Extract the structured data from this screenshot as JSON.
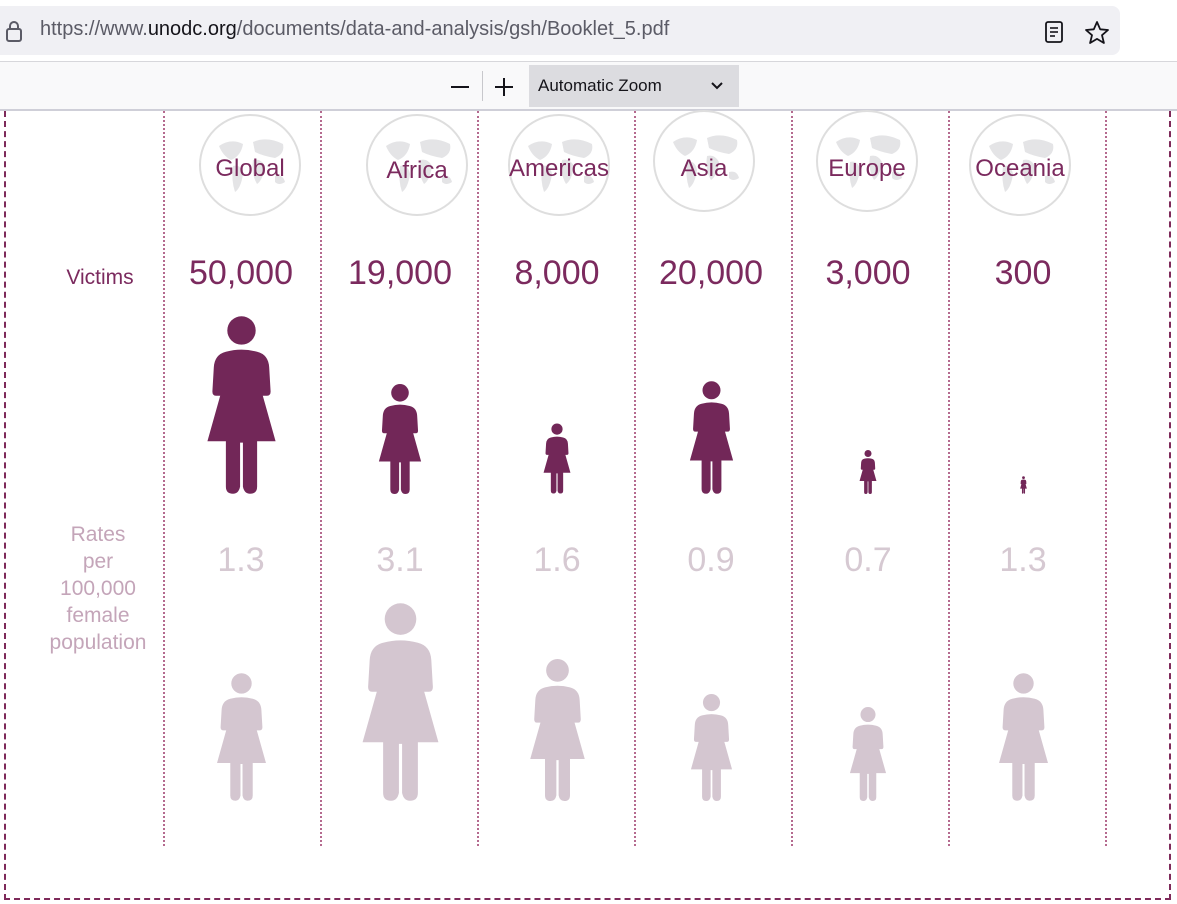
{
  "browser": {
    "url_prefix": "https://www.",
    "url_host": "unodc.org",
    "url_path": "/documents/data-and-analysis/gsh/Booklet_5.pdf",
    "lock_icon": "lock-icon",
    "reader_icon": "reader-view-icon",
    "bookmark_icon": "star-icon"
  },
  "pdf_toolbar": {
    "zoom_out_icon": "minus-icon",
    "zoom_in_icon": "plus-icon",
    "zoom_value": "Automatic Zoom"
  },
  "infographic": {
    "victims_label": "Victims",
    "rates_label_lines": [
      "Rates",
      "per",
      "100,000",
      "female",
      "population"
    ],
    "colors": {
      "victims": "#722758",
      "rates": "#d4c6d0",
      "text": "#7b2a5e"
    },
    "regions": [
      {
        "name": "Global",
        "victims": "50,000",
        "victims_num": 50000,
        "rate": "1.3",
        "rate_num": 1.3
      },
      {
        "name": "Africa",
        "victims": "19,000",
        "victims_num": 19000,
        "rate": "3.1",
        "rate_num": 3.1
      },
      {
        "name": "Americas",
        "victims": "8,000",
        "victims_num": 8000,
        "rate": "1.6",
        "rate_num": 1.6
      },
      {
        "name": "Asia",
        "victims": "20,000",
        "victims_num": 20000,
        "rate": "0.9",
        "rate_num": 0.9
      },
      {
        "name": "Europe",
        "victims": "3,000",
        "victims_num": 3000,
        "rate": "0.7",
        "rate_num": 0.7
      },
      {
        "name": "Oceania",
        "victims": "300",
        "victims_num": 300,
        "rate": "1.3",
        "rate_num": 1.3
      }
    ]
  }
}
